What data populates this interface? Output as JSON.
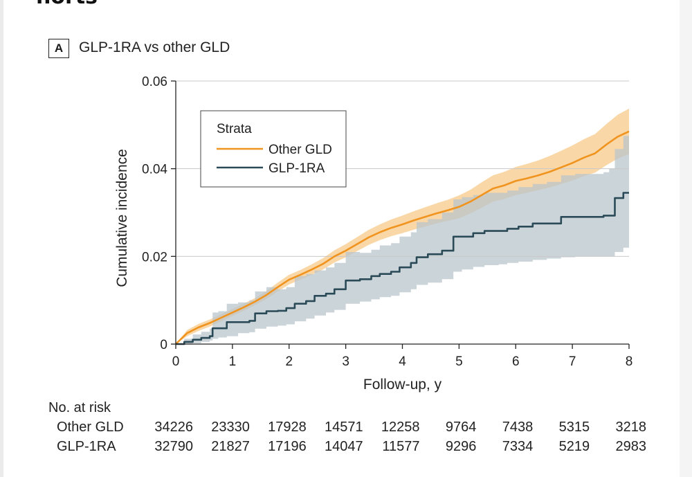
{
  "heading_fragment": "horts",
  "panel": {
    "letter": "A",
    "title": "GLP-1RA vs other GLD"
  },
  "chart_data": {
    "type": "line",
    "title": "GLP-1RA vs other GLD",
    "xlabel": "Follow-up, y",
    "ylabel": "Cumulative incidence",
    "xlim": [
      0,
      8
    ],
    "ylim": [
      0,
      0.06
    ],
    "x_ticks": [
      0,
      1,
      2,
      3,
      4,
      5,
      6,
      7,
      8
    ],
    "y_ticks": [
      0,
      0.02,
      0.04,
      0.06
    ],
    "y_tick_labels": [
      "0",
      "0.02",
      "0.04",
      "0.06"
    ],
    "grid": "horizontal",
    "legend": {
      "title": "Strata",
      "position": "top-left"
    },
    "series": [
      {
        "name": "Other GLD",
        "color": "#f0941f",
        "band_color": "#f7c98a",
        "step": false,
        "x": [
          0,
          0.2,
          0.4,
          0.6,
          0.8,
          1.0,
          1.2,
          1.4,
          1.6,
          1.8,
          2.0,
          2.2,
          2.4,
          2.6,
          2.8,
          3.0,
          3.2,
          3.4,
          3.6,
          3.8,
          4.0,
          4.2,
          4.4,
          4.6,
          4.8,
          5.0,
          5.2,
          5.4,
          5.6,
          5.8,
          6.0,
          6.2,
          6.4,
          6.6,
          6.8,
          7.0,
          7.2,
          7.4,
          7.6,
          7.8,
          8.0
        ],
        "y": [
          0,
          0.0025,
          0.0038,
          0.0048,
          0.006,
          0.0072,
          0.0084,
          0.0097,
          0.0112,
          0.013,
          0.0147,
          0.0158,
          0.017,
          0.0183,
          0.02,
          0.0213,
          0.0228,
          0.0243,
          0.0255,
          0.0265,
          0.0273,
          0.0282,
          0.029,
          0.0298,
          0.0305,
          0.0313,
          0.0325,
          0.034,
          0.0355,
          0.0362,
          0.0372,
          0.0378,
          0.0385,
          0.0393,
          0.0403,
          0.0413,
          0.0425,
          0.0435,
          0.0455,
          0.0473,
          0.0485
        ],
        "lower": [
          0,
          0.0018,
          0.003,
          0.004,
          0.0052,
          0.0064,
          0.0076,
          0.0089,
          0.0103,
          0.012,
          0.0136,
          0.0147,
          0.0158,
          0.017,
          0.0186,
          0.0198,
          0.0212,
          0.0226,
          0.0237,
          0.0246,
          0.0253,
          0.0261,
          0.0268,
          0.0275,
          0.0281,
          0.0287,
          0.0298,
          0.0311,
          0.0325,
          0.0331,
          0.034,
          0.0345,
          0.0351,
          0.0357,
          0.0365,
          0.0373,
          0.0383,
          0.0391,
          0.0408,
          0.0423,
          0.0433
        ],
        "upper": [
          0,
          0.0032,
          0.0046,
          0.0056,
          0.0068,
          0.008,
          0.0092,
          0.0105,
          0.0121,
          0.014,
          0.0158,
          0.0169,
          0.0182,
          0.0196,
          0.0214,
          0.0228,
          0.0244,
          0.026,
          0.0273,
          0.0284,
          0.0293,
          0.0303,
          0.0312,
          0.0321,
          0.0329,
          0.0339,
          0.0352,
          0.0369,
          0.0385,
          0.0393,
          0.0404,
          0.0411,
          0.0419,
          0.0429,
          0.0441,
          0.0453,
          0.0467,
          0.0479,
          0.0502,
          0.0523,
          0.0537
        ]
      },
      {
        "name": "GLP-1RA",
        "color": "#2b4a57",
        "band_color": "#b9c6cc",
        "step": true,
        "x": [
          0,
          0.15,
          0.3,
          0.45,
          0.6,
          0.65,
          0.75,
          0.9,
          1.1,
          1.3,
          1.4,
          1.6,
          1.8,
          1.95,
          2.1,
          2.3,
          2.45,
          2.65,
          2.8,
          3.0,
          3.25,
          3.45,
          3.6,
          3.8,
          3.95,
          4.15,
          4.25,
          4.45,
          4.7,
          4.9,
          5.05,
          5.25,
          5.45,
          5.7,
          5.85,
          6.05,
          6.3,
          6.55,
          6.8,
          7.05,
          7.35,
          7.55,
          7.65,
          7.75,
          7.9,
          8.0
        ],
        "y": [
          0,
          0.0005,
          0.001,
          0.0014,
          0.0018,
          0.0036,
          0.0036,
          0.005,
          0.005,
          0.0053,
          0.007,
          0.0075,
          0.0076,
          0.0082,
          0.0092,
          0.0098,
          0.011,
          0.0115,
          0.0125,
          0.0145,
          0.0148,
          0.0155,
          0.016,
          0.0165,
          0.0175,
          0.0185,
          0.0198,
          0.0205,
          0.0213,
          0.0245,
          0.0245,
          0.0253,
          0.0258,
          0.0258,
          0.0263,
          0.0268,
          0.0275,
          0.0275,
          0.029,
          0.029,
          0.029,
          0.0293,
          0.0293,
          0.0333,
          0.0345,
          0.0345
        ],
        "lower": [
          0,
          0,
          0.0002,
          0.0005,
          0.0008,
          0.0012,
          0.0015,
          0.0018,
          0.0025,
          0.0027,
          0.0035,
          0.004,
          0.0042,
          0.0045,
          0.0052,
          0.0058,
          0.0065,
          0.0072,
          0.0078,
          0.0092,
          0.0097,
          0.0102,
          0.0107,
          0.011,
          0.0118,
          0.0125,
          0.0135,
          0.014,
          0.0148,
          0.0165,
          0.017,
          0.0176,
          0.018,
          0.0182,
          0.0185,
          0.0188,
          0.0192,
          0.0195,
          0.0198,
          0.02,
          0.02,
          0.02,
          0.02,
          0.021,
          0.022,
          0.022
        ],
        "upper": [
          0,
          0.0012,
          0.0022,
          0.0028,
          0.0035,
          0.0072,
          0.0075,
          0.0092,
          0.0095,
          0.01,
          0.012,
          0.013,
          0.0125,
          0.013,
          0.0155,
          0.016,
          0.0168,
          0.0175,
          0.0185,
          0.021,
          0.0208,
          0.0215,
          0.0225,
          0.023,
          0.0245,
          0.0255,
          0.0278,
          0.0285,
          0.03,
          0.033,
          0.0335,
          0.034,
          0.0345,
          0.0345,
          0.035,
          0.0358,
          0.0365,
          0.037,
          0.0385,
          0.0388,
          0.0388,
          0.0392,
          0.04,
          0.0445,
          0.0475,
          0.0475
        ]
      }
    ]
  },
  "risk_table": {
    "title": "No. at risk",
    "rows": [
      {
        "label": "Other GLD",
        "values": [
          "34226",
          "23330",
          "17928",
          "14571",
          "12258",
          "9764",
          "7438",
          "5315",
          "3218"
        ]
      },
      {
        "label": "GLP-1RA",
        "values": [
          "32790",
          "21827",
          "17196",
          "14047",
          "11577",
          "9296",
          "7334",
          "5219",
          "2983"
        ]
      }
    ]
  }
}
